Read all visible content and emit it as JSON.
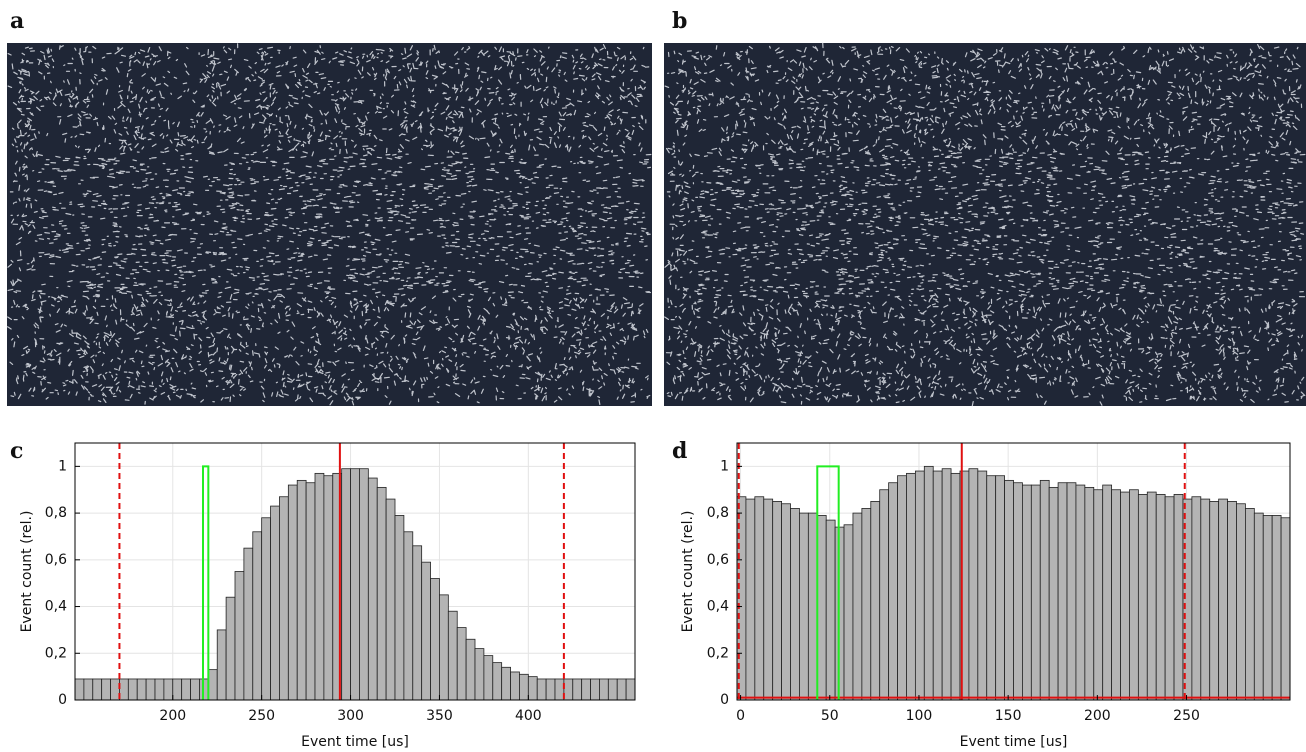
{
  "panel_labels": [
    "a",
    "b",
    "c",
    "d"
  ],
  "chart_data": [
    {
      "type": "histogram",
      "xlabel": "Event time [us]",
      "ylabel": "Event count (rel.)",
      "bins": [
        145,
        150,
        155,
        160,
        165,
        170,
        175,
        180,
        185,
        190,
        195,
        200,
        205,
        210,
        215,
        220,
        225,
        230,
        235,
        240,
        245,
        250,
        255,
        260,
        265,
        270,
        275,
        280,
        285,
        290,
        295,
        300,
        305,
        310,
        315,
        320,
        325,
        330,
        335,
        340,
        345,
        350,
        355,
        360,
        365,
        370,
        375,
        380,
        385,
        390,
        395,
        400,
        405,
        410,
        415,
        420,
        425,
        430,
        435,
        440,
        445,
        450,
        455,
        460
      ],
      "values": [
        0.09,
        0.09,
        0.09,
        0.09,
        0.09,
        0.09,
        0.09,
        0.09,
        0.09,
        0.09,
        0.09,
        0.09,
        0.09,
        0.09,
        0.09,
        0.13,
        0.3,
        0.44,
        0.55,
        0.65,
        0.72,
        0.78,
        0.83,
        0.87,
        0.92,
        0.94,
        0.93,
        0.97,
        0.96,
        0.97,
        0.99,
        0.99,
        0.99,
        0.95,
        0.91,
        0.86,
        0.79,
        0.72,
        0.66,
        0.59,
        0.52,
        0.45,
        0.38,
        0.31,
        0.26,
        0.22,
        0.19,
        0.16,
        0.14,
        0.12,
        0.11,
        0.1,
        0.09,
        0.09,
        0.09,
        0.09,
        0.09,
        0.09,
        0.09,
        0.09,
        0.09,
        0.09,
        0.09
      ],
      "color": "#b4b4b4",
      "xlim": [
        145,
        460
      ],
      "xticks": [
        200,
        250,
        300,
        350,
        400
      ],
      "ylim": [
        0,
        1.1
      ],
      "yticks": [
        0,
        {
          "value": 0.2,
          "label": "0,2"
        },
        {
          "value": 0.4,
          "label": "0,4"
        },
        {
          "value": 0.6,
          "label": "0,6"
        },
        {
          "value": 0.8,
          "label": "0,8"
        },
        1
      ],
      "grid": true,
      "vlines": [
        {
          "x": 170,
          "color": "#e01010",
          "dashed": true
        },
        {
          "x": 294,
          "color": "#e01010",
          "dashed": false
        },
        {
          "x": 420,
          "color": "#e01010",
          "dashed": true
        }
      ],
      "gates": [
        {
          "x0": 217,
          "x1": 220,
          "top": 1,
          "color": "#22ee22"
        }
      ],
      "hlines": []
    },
    {
      "type": "histogram",
      "xlabel": "Event time [us]",
      "ylabel": "Event count (rel.)",
      "bins": [
        -2,
        3,
        8,
        13,
        18,
        23,
        28,
        33,
        38,
        43,
        48,
        53,
        58,
        63,
        68,
        73,
        78,
        83,
        88,
        93,
        98,
        103,
        108,
        113,
        118,
        123,
        128,
        133,
        138,
        143,
        148,
        153,
        158,
        163,
        168,
        173,
        178,
        183,
        188,
        193,
        198,
        203,
        208,
        213,
        218,
        223,
        228,
        233,
        238,
        243,
        248,
        253,
        258,
        263,
        268,
        273,
        278,
        283,
        288,
        293,
        298,
        303,
        308
      ],
      "values": [
        0.87,
        0.86,
        0.87,
        0.86,
        0.85,
        0.84,
        0.82,
        0.8,
        0.8,
        0.79,
        0.77,
        0.74,
        0.75,
        0.8,
        0.82,
        0.85,
        0.9,
        0.93,
        0.96,
        0.97,
        0.98,
        1.0,
        0.98,
        0.99,
        0.97,
        0.98,
        0.99,
        0.98,
        0.96,
        0.96,
        0.94,
        0.93,
        0.92,
        0.92,
        0.94,
        0.91,
        0.93,
        0.93,
        0.92,
        0.91,
        0.9,
        0.92,
        0.9,
        0.89,
        0.9,
        0.88,
        0.89,
        0.88,
        0.87,
        0.88,
        0.86,
        0.87,
        0.86,
        0.85,
        0.86,
        0.85,
        0.84,
        0.82,
        0.8,
        0.79,
        0.79,
        0.78
      ],
      "color": "#b4b4b4",
      "xlim": [
        -2,
        308
      ],
      "xticks": [
        0,
        50,
        100,
        150,
        200,
        250
      ],
      "ylim": [
        0,
        1.1
      ],
      "yticks": [
        0,
        {
          "value": 0.2,
          "label": "0,2"
        },
        {
          "value": 0.4,
          "label": "0,4"
        },
        {
          "value": 0.6,
          "label": "0,6"
        },
        {
          "value": 0.8,
          "label": "0,8"
        },
        1
      ],
      "grid": true,
      "vlines": [
        {
          "x": -1,
          "color": "#e01010",
          "dashed": true
        },
        {
          "x": 124,
          "color": "#e01010",
          "dashed": false
        },
        {
          "x": 249,
          "color": "#e01010",
          "dashed": true
        }
      ],
      "gates": [
        {
          "x0": 43,
          "x1": 55,
          "top": 1,
          "color": "#22ee22"
        }
      ],
      "hlines": [
        {
          "y": 0.01,
          "color": "#e01010"
        }
      ]
    }
  ]
}
